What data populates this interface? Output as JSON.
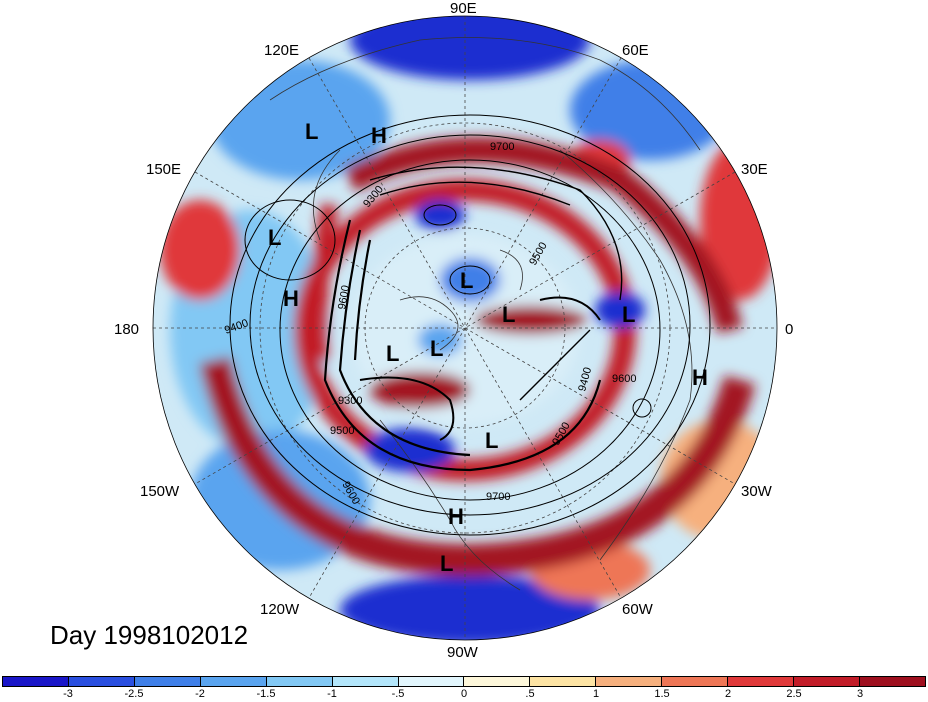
{
  "map": {
    "projection": "north-polar-stereographic",
    "field": "anomaly (shaded) with geopotential height contours",
    "longitude_labels": [
      {
        "id": "lon-90e",
        "text": "90E"
      },
      {
        "id": "lon-60e",
        "text": "60E"
      },
      {
        "id": "lon-30e",
        "text": "30E"
      },
      {
        "id": "lon-0",
        "text": "0"
      },
      {
        "id": "lon-30w",
        "text": "30W"
      },
      {
        "id": "lon-60w",
        "text": "60W"
      },
      {
        "id": "lon-90w",
        "text": "90W"
      },
      {
        "id": "lon-120w",
        "text": "120W"
      },
      {
        "id": "lon-150w",
        "text": "150W"
      },
      {
        "id": "lon-180",
        "text": "180"
      },
      {
        "id": "lon-150e",
        "text": "150E"
      },
      {
        "id": "lon-120e",
        "text": "120E"
      }
    ],
    "pressure_centers": [
      {
        "type": "L"
      },
      {
        "type": "H"
      },
      {
        "type": "L"
      },
      {
        "type": "H"
      },
      {
        "type": "L"
      },
      {
        "type": "L"
      },
      {
        "type": "L"
      },
      {
        "type": "L"
      },
      {
        "type": "L"
      },
      {
        "type": "L"
      },
      {
        "type": "H"
      },
      {
        "type": "H"
      },
      {
        "type": "L"
      }
    ],
    "contour_labels": [
      "9700",
      "9600",
      "9500",
      "9300",
      "9400",
      "9500",
      "9600",
      "9700",
      "9600",
      "9500",
      "9400",
      "9300"
    ],
    "colors": {
      "ring": "#a31420",
      "deep_blue": "#1a2fd0",
      "mid_blue": "#4a8ee8",
      "light_blue": "#b7e3fb",
      "cream": "#fbf3d0",
      "orange": "#f3a07a",
      "red": "#d93a34"
    }
  },
  "date_label": "Day 1998102012",
  "colorbar": {
    "tick_labels": [
      "-3",
      "-2.5",
      "-2",
      "-1.5",
      "-1",
      "-.5",
      "0",
      ".5",
      "1",
      "1.5",
      "2",
      "2.5",
      "3"
    ],
    "colors": [
      "#1a16c9",
      "#2a4fe0",
      "#3f7fe8",
      "#5aa4ef",
      "#82c8f4",
      "#b3e6fb",
      "#e2f6fd",
      "#fdf7da",
      "#fde4a4",
      "#f6b07e",
      "#ee7656",
      "#e0393a",
      "#c21c28",
      "#9e0f1e"
    ]
  }
}
